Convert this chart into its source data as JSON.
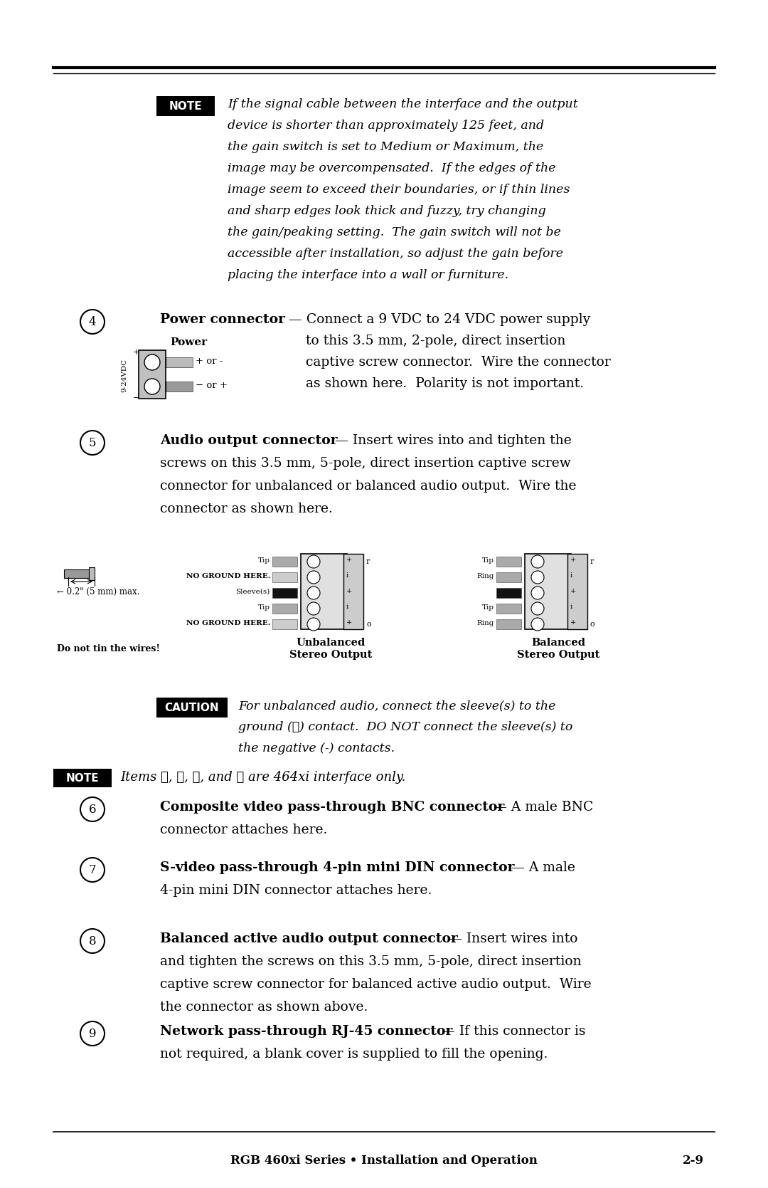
{
  "bg_color": "#ffffff",
  "page_width": 10.8,
  "page_height": 16.69,
  "footer_text": "RGB 460xi Series • Installation and Operation",
  "footer_right": "2-9",
  "note1_lines": [
    "If the signal cable between the interface and the output",
    "device is shorter than approximately 125 feet, and",
    "the gain switch is set to Medium or Maximum, the",
    "image may be overcompensated.  If the edges of the",
    "image seem to exceed their boundaries, or if thin lines",
    "and sharp edges look thick and fuzzy, try changing",
    "the gain/peaking setting.  The gain switch will not be",
    "accessible after installation, so adjust the gain before",
    "placing the interface into a wall or furniture."
  ],
  "item4_cont": [
    "to this 3.5 mm, 2-pole, direct insertion",
    "captive screw connector.  Wire the connector",
    "as shown here.  Polarity is not important."
  ],
  "item5_lines": [
    "screws on this 3.5 mm, 5-pole, direct insertion captive screw",
    "connector for unbalanced or balanced audio output.  Wire the",
    "connector as shown here."
  ],
  "caution_lines": [
    "For unbalanced audio, connect the sleeve(s) to the",
    "ground (⏚) contact.  DO NOT connect the sleeve(s) to",
    "the negative (-) contacts."
  ],
  "item6_line2": "connector attaches here.",
  "item7_line2": "4-pin mini DIN connector attaches here.",
  "item8_lines": [
    "and tighten the screws on this 3.5 mm, 5-pole, direct insertion",
    "captive screw connector for balanced active audio output.  Wire",
    "the connector as shown above."
  ],
  "item9_line2": "not required, a blank cover is supplied to fill the opening."
}
